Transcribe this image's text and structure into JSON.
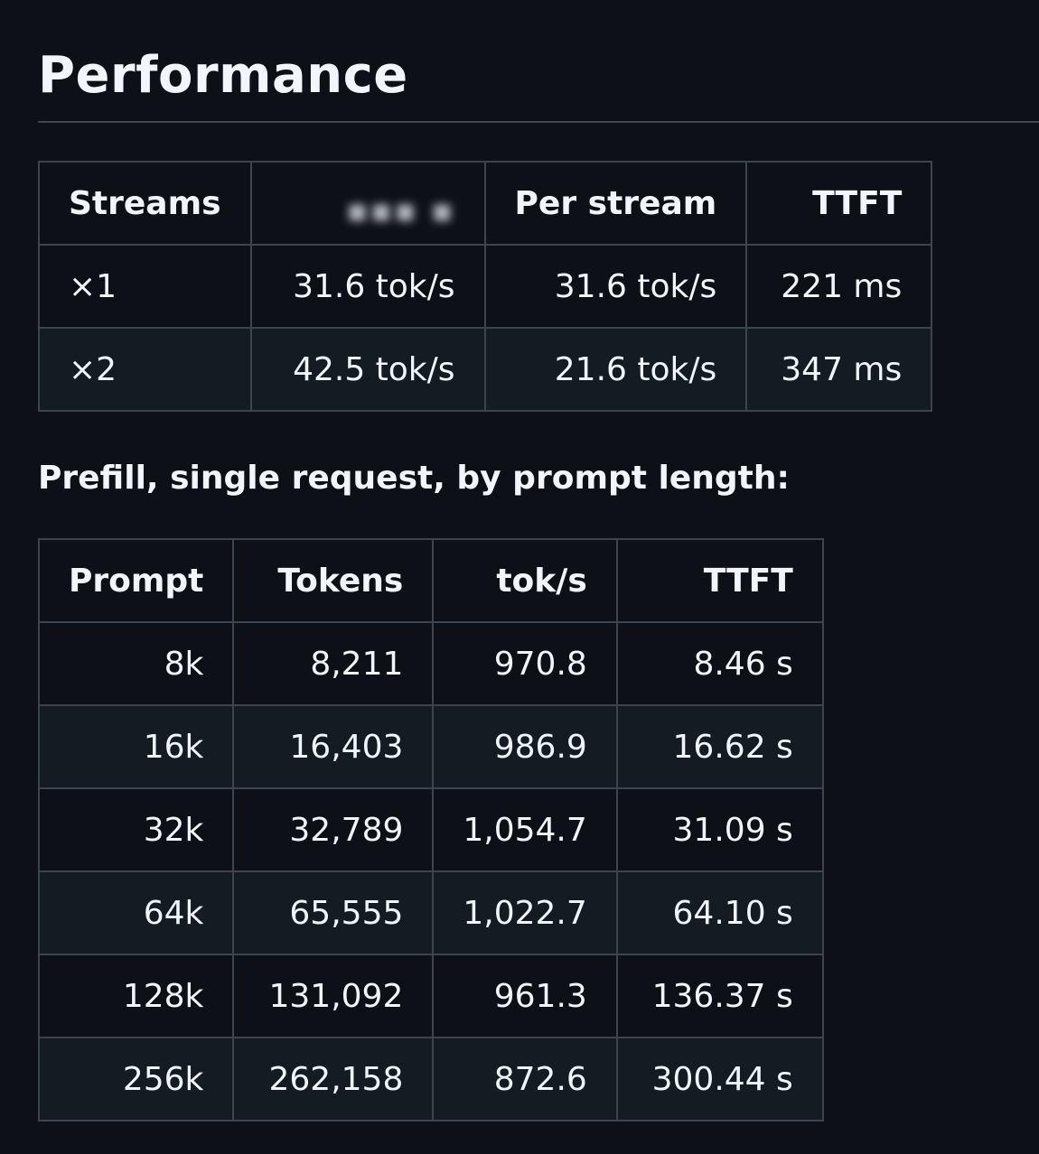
{
  "heading": "Performance",
  "streams_table": {
    "headers": [
      "Streams",
      "",
      "Per stream",
      "TTFT"
    ],
    "rows": [
      [
        "×1",
        "31.6 tok/s",
        "31.6 tok/s",
        "221 ms"
      ],
      [
        "×2",
        "42.5 tok/s",
        "21.6 tok/s",
        "347 ms"
      ]
    ]
  },
  "prefill_caption": "Prefill, single request, by prompt length:",
  "prefill_table": {
    "headers": [
      "Prompt",
      "Tokens",
      "tok/s",
      "TTFT"
    ],
    "rows": [
      [
        "8k",
        "8,211",
        "970.8",
        "8.46 s"
      ],
      [
        "16k",
        "16,403",
        "986.9",
        "16.62 s"
      ],
      [
        "32k",
        "32,789",
        "1,054.7",
        "31.09 s"
      ],
      [
        "64k",
        "65,555",
        "1,022.7",
        "64.10 s"
      ],
      [
        "128k",
        "131,092",
        "961.3",
        "136.37 s"
      ],
      [
        "256k",
        "262,158",
        "872.6",
        "300.44 s"
      ]
    ]
  },
  "colors": {
    "background": "#0d1117",
    "row_alt": "#151b23",
    "border": "#3d444d",
    "text": "#f0f6fc"
  }
}
